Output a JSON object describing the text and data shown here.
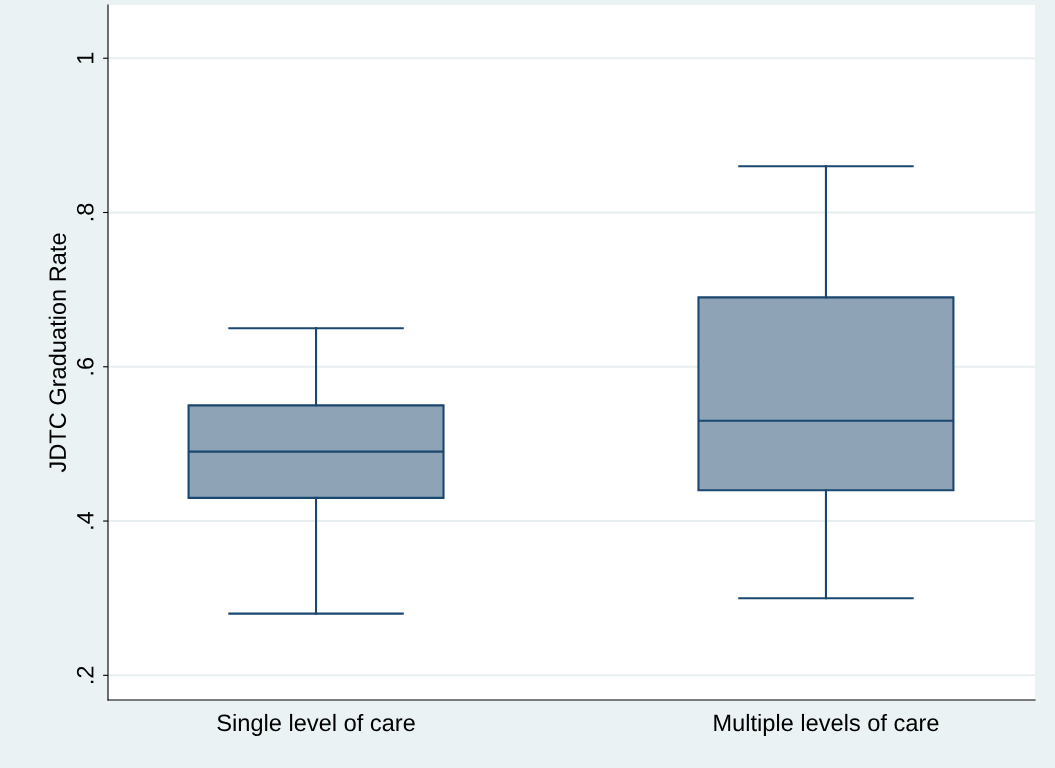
{
  "chart_data": {
    "type": "box",
    "ylabel": "JDTC Graduation Rate",
    "categories": [
      "Single level of care",
      "Multiple levels of care"
    ],
    "boxes": [
      {
        "low": 0.28,
        "q1": 0.43,
        "median": 0.49,
        "q3": 0.55,
        "high": 0.65
      },
      {
        "low": 0.3,
        "q1": 0.44,
        "median": 0.53,
        "q3": 0.69,
        "high": 0.86
      }
    ],
    "color": "#8ea3b5",
    "ylim": [
      0.168,
      1.069
    ],
    "yticks": [
      {
        "value": 0.2,
        "label": ".2"
      },
      {
        "value": 0.4,
        "label": ".4"
      },
      {
        "value": 0.6,
        "label": ".6"
      },
      {
        "value": 0.8,
        "label": ".8"
      },
      {
        "value": 1,
        "label": "1"
      }
    ],
    "grid": "y"
  }
}
